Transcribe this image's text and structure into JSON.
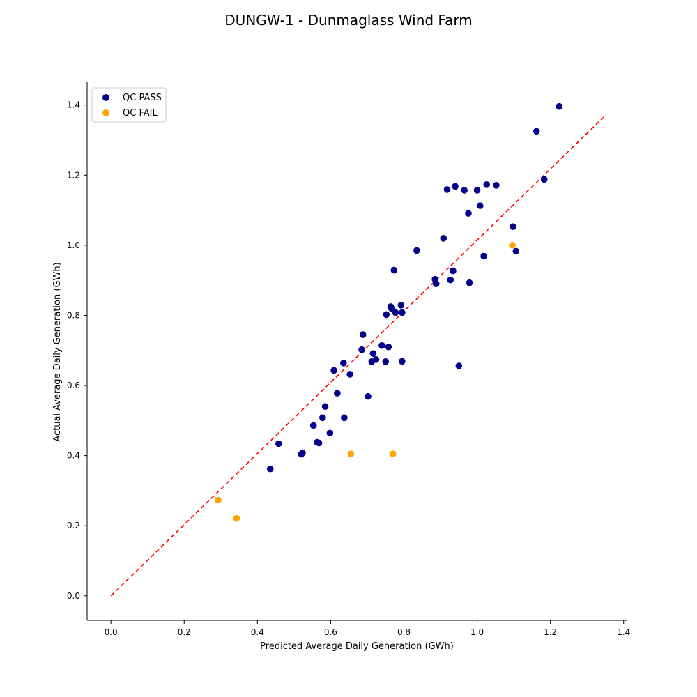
{
  "chart_data": {
    "type": "scatter",
    "title": "DUNGW-1 - Dunmaglass Wind Farm",
    "xlabel": "Predicted Average Daily Generation (GWh)",
    "ylabel": "Actual Average Daily Generation (GWh)",
    "xlim": [
      -0.065,
      1.41
    ],
    "ylim": [
      -0.07,
      1.465
    ],
    "xticks": [
      "0.0",
      "0.2",
      "0.4",
      "0.6",
      "0.8",
      "1.0",
      "1.2",
      "1.4"
    ],
    "yticks": [
      "0.0",
      "0.2",
      "0.4",
      "0.6",
      "0.8",
      "1.0",
      "1.2",
      "1.4"
    ],
    "grid": false,
    "legend_position": "top-left",
    "reference_line": {
      "style": "dashed",
      "color": "#ff0000",
      "x": [
        0.0,
        1.35
      ],
      "y": [
        0.0,
        1.37
      ]
    },
    "series": [
      {
        "name": "QC PASS",
        "color": "#00008b",
        "points": [
          [
            0.435,
            0.362
          ],
          [
            0.458,
            0.434
          ],
          [
            0.52,
            0.404
          ],
          [
            0.523,
            0.408
          ],
          [
            0.553,
            0.486
          ],
          [
            0.563,
            0.438
          ],
          [
            0.568,
            0.436
          ],
          [
            0.578,
            0.508
          ],
          [
            0.585,
            0.54
          ],
          [
            0.598,
            0.464
          ],
          [
            0.609,
            0.643
          ],
          [
            0.618,
            0.578
          ],
          [
            0.635,
            0.664
          ],
          [
            0.637,
            0.508
          ],
          [
            0.653,
            0.632
          ],
          [
            0.685,
            0.702
          ],
          [
            0.688,
            0.745
          ],
          [
            0.702,
            0.569
          ],
          [
            0.712,
            0.668
          ],
          [
            0.716,
            0.691
          ],
          [
            0.724,
            0.674
          ],
          [
            0.74,
            0.714
          ],
          [
            0.75,
            0.668
          ],
          [
            0.752,
            0.802
          ],
          [
            0.758,
            0.71
          ],
          [
            0.764,
            0.825
          ],
          [
            0.766,
            0.82
          ],
          [
            0.773,
            0.929
          ],
          [
            0.777,
            0.808
          ],
          [
            0.792,
            0.829
          ],
          [
            0.795,
            0.808
          ],
          [
            0.795,
            0.669
          ],
          [
            0.835,
            0.985
          ],
          [
            0.885,
            0.903
          ],
          [
            0.888,
            0.89
          ],
          [
            0.908,
            1.02
          ],
          [
            0.918,
            1.159
          ],
          [
            0.927,
            0.901
          ],
          [
            0.934,
            0.927
          ],
          [
            0.94,
            1.168
          ],
          [
            0.95,
            0.656
          ],
          [
            0.965,
            1.157
          ],
          [
            0.976,
            1.091
          ],
          [
            0.979,
            0.893
          ],
          [
            1.0,
            1.157
          ],
          [
            1.008,
            1.113
          ],
          [
            1.018,
            0.969
          ],
          [
            1.026,
            1.173
          ],
          [
            1.052,
            1.171
          ],
          [
            1.098,
            1.053
          ],
          [
            1.106,
            0.983
          ],
          [
            1.162,
            1.325
          ],
          [
            1.183,
            1.188
          ],
          [
            1.224,
            1.396
          ]
        ]
      },
      {
        "name": "QC FAIL",
        "color": "#ffa500",
        "points": [
          [
            0.293,
            0.273
          ],
          [
            0.343,
            0.221
          ],
          [
            0.655,
            0.405
          ],
          [
            0.77,
            0.405
          ],
          [
            1.096,
            1.0
          ]
        ]
      }
    ]
  }
}
